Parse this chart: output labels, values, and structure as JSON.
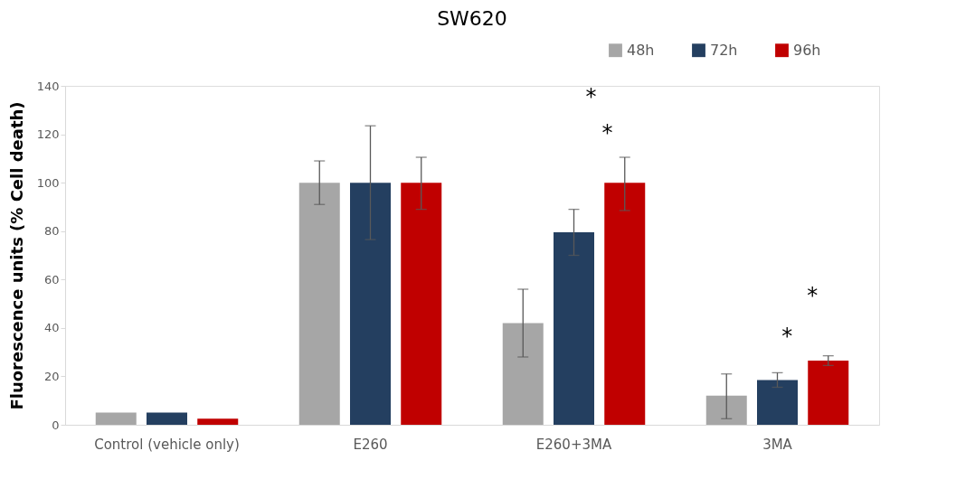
{
  "chart_data": {
    "type": "bar",
    "title": "SW620",
    "ylabel": "Fluorescence units (% Cell death)",
    "categories": [
      "Control (vehicle only)",
      "E260",
      "E260+3MA",
      "3MA"
    ],
    "series": [
      {
        "name": "48h",
        "color": "#a6a6a6",
        "values": [
          5,
          100,
          42,
          12
        ],
        "errors": [
          null,
          9,
          [
            28,
            56
          ],
          [
            2.5,
            21
          ]
        ]
      },
      {
        "name": "72h",
        "color": "#243f60",
        "values": [
          5,
          100,
          79.5,
          18.5
        ],
        "errors": [
          null,
          23.5,
          [
            70,
            89
          ],
          [
            15.5,
            21.5
          ]
        ]
      },
      {
        "name": "96h",
        "color": "#c00000",
        "values": [
          2.5,
          100,
          100,
          26.5
        ],
        "errors": [
          null,
          [
            89,
            110.5
          ],
          [
            88.5,
            110.5
          ],
          [
            24.5,
            28.5
          ]
        ]
      }
    ],
    "ylim": [
      0,
      140
    ],
    "yticks": [
      0,
      20,
      40,
      60,
      80,
      100,
      120,
      140
    ],
    "grid": false,
    "legend": "top right",
    "annotations": [
      "*",
      "*",
      "*",
      "*"
    ]
  }
}
